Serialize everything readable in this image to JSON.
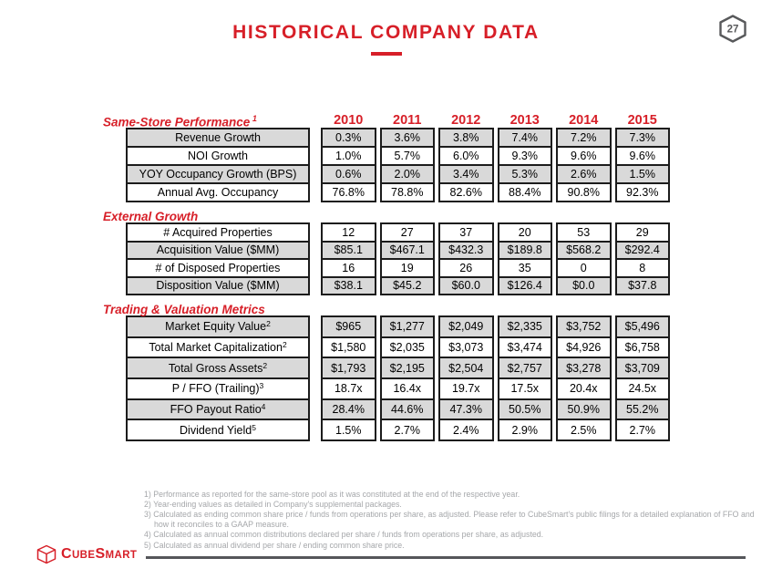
{
  "title": {
    "text": "HISTORICAL COMPANY DATA"
  },
  "page_badge": {
    "number": "27"
  },
  "years": [
    "2010",
    "2011",
    "2012",
    "2013",
    "2014",
    "2015"
  ],
  "sections": [
    {
      "heading": "Same-Store Performance",
      "sup": "1",
      "rows": [
        {
          "label": "Revenue Growth",
          "sup": "",
          "values": [
            "0.3%",
            "3.6%",
            "3.8%",
            "7.4%",
            "7.2%",
            "7.3%"
          ]
        },
        {
          "label": "NOI Growth",
          "sup": "",
          "values": [
            "1.0%",
            "5.7%",
            "6.0%",
            "9.3%",
            "9.6%",
            "9.6%"
          ]
        },
        {
          "label": "YOY Occupancy Growth (BPS)",
          "sup": "",
          "values": [
            "0.6%",
            "2.0%",
            "3.4%",
            "5.3%",
            "2.6%",
            "1.5%"
          ]
        },
        {
          "label": "Annual Avg. Occupancy",
          "sup": "",
          "values": [
            "76.8%",
            "78.8%",
            "82.6%",
            "88.4%",
            "90.8%",
            "92.3%"
          ]
        }
      ]
    },
    {
      "heading": "External Growth",
      "sup": "",
      "rows": [
        {
          "label": "# Acquired Properties",
          "sup": "",
          "values": [
            "12",
            "27",
            "37",
            "20",
            "53",
            "29"
          ]
        },
        {
          "label": "Acquisition Value ($MM)",
          "sup": "",
          "values": [
            "$85.1",
            "$467.1",
            "$432.3",
            "$189.8",
            "$568.2",
            "$292.4"
          ]
        },
        {
          "label": "# of Disposed Properties",
          "sup": "",
          "values": [
            "16",
            "19",
            "26",
            "35",
            "0",
            "8"
          ]
        },
        {
          "label": "Disposition Value ($MM)",
          "sup": "",
          "values": [
            "$38.1",
            "$45.2",
            "$60.0",
            "$126.4",
            "$0.0",
            "$37.8"
          ]
        }
      ]
    },
    {
      "heading": "Trading & Valuation Metrics",
      "sup": "",
      "rows": [
        {
          "label": "Market Equity Value",
          "sup": "2",
          "values": [
            "$965",
            "$1,277",
            "$2,049",
            "$2,335",
            "$3,752",
            "$5,496"
          ]
        },
        {
          "label": "Total Market Capitalization",
          "sup": "2",
          "values": [
            "$1,580",
            "$2,035",
            "$3,073",
            "$3,474",
            "$4,926",
            "$6,758"
          ]
        },
        {
          "label": "Total Gross Assets",
          "sup": "2",
          "values": [
            "$1,793",
            "$2,195",
            "$2,504",
            "$2,757",
            "$3,278",
            "$3,709"
          ]
        },
        {
          "label": "P / FFO (Trailing)",
          "sup": "3",
          "values": [
            "18.7x",
            "16.4x",
            "19.7x",
            "17.5x",
            "20.4x",
            "24.5x"
          ]
        },
        {
          "label": "FFO Payout Ratio",
          "sup": "4",
          "values": [
            "28.4%",
            "44.6%",
            "47.3%",
            "50.5%",
            "50.9%",
            "55.2%"
          ]
        },
        {
          "label": "Dividend Yield",
          "sup": "5",
          "values": [
            "1.5%",
            "2.7%",
            "2.4%",
            "2.9%",
            "2.5%",
            "2.7%"
          ]
        }
      ]
    }
  ],
  "footnotes": [
    "1) Performance as reported for the same-store pool as it was constituted at the end of the respective year.",
    "2) Year-ending values as detailed in Company's supplemental packages.",
    "3) Calculated as ending common share price / funds from operations per share, as adjusted. Please refer to CubeSmart's public filings for a detailed explanation of FFO and how it reconciles to a GAAP measure.",
    "4) Calculated as annual common distributions declared per share / funds from operations per share, as adjusted.",
    "5) Calculated as annual dividend per share / ending common share price."
  ],
  "logo": {
    "name": "CubeSmart",
    "parts": [
      "C",
      "UBE",
      "S",
      "MART"
    ]
  },
  "colors": {
    "accent_red": "#d71f28",
    "row_shade_gray": "#d9d9d9",
    "table_border": "#1c1c1c",
    "footnote_gray": "#a5a7aa",
    "footer_rule_gray": "#55565a",
    "badge_gray": "#58595b"
  }
}
